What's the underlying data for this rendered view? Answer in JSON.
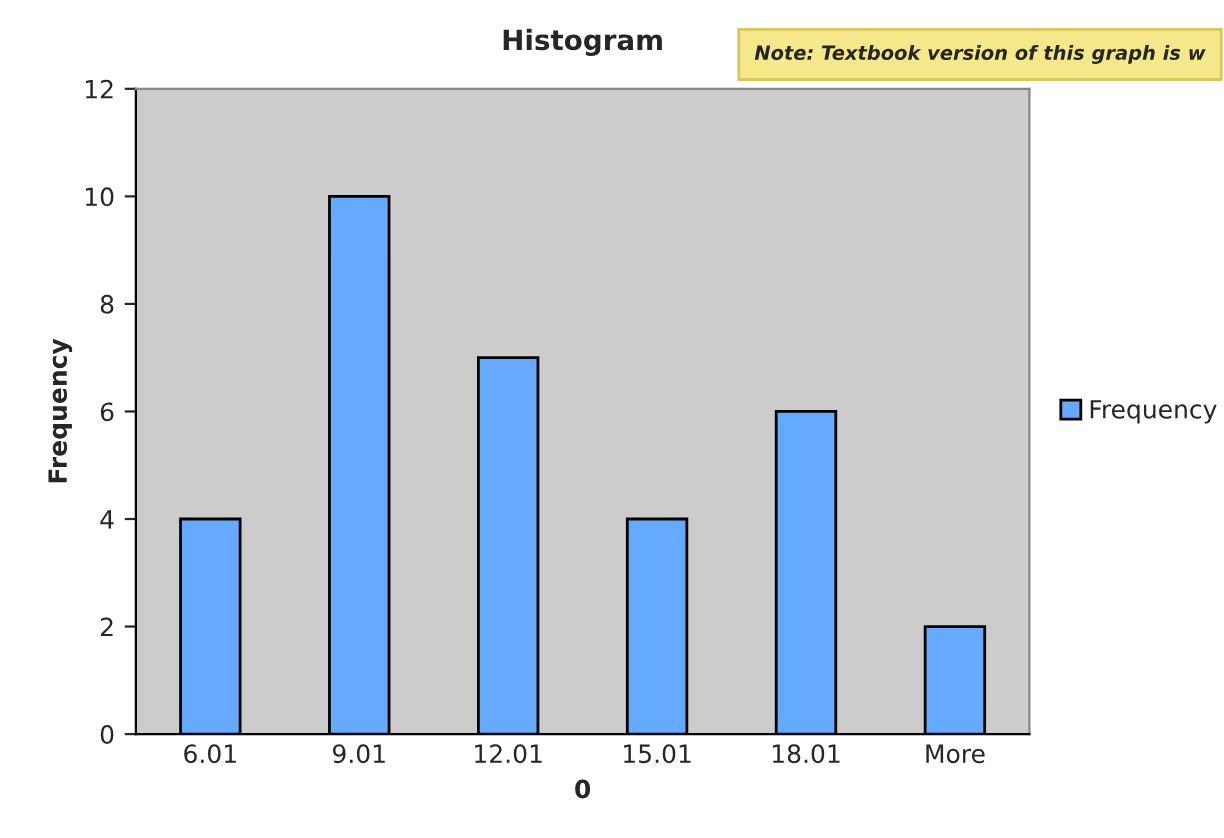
{
  "chart_data": {
    "type": "bar",
    "title": "Histogram",
    "xlabel": "0",
    "ylabel": "Frequency",
    "annotations": [
      "Note: Textbook version of this graph is w"
    ],
    "categories": [
      "6.01",
      "9.01",
      "12.01",
      "15.01",
      "18.01",
      "More"
    ],
    "series": [
      {
        "name": "Frequency",
        "color": "#66aaff",
        "values": [
          4,
          10,
          7,
          4,
          6,
          2
        ]
      }
    ],
    "ylim": [
      0,
      12
    ],
    "yticks": [
      0,
      2,
      4,
      6,
      8,
      10,
      12
    ],
    "legend": "right"
  }
}
